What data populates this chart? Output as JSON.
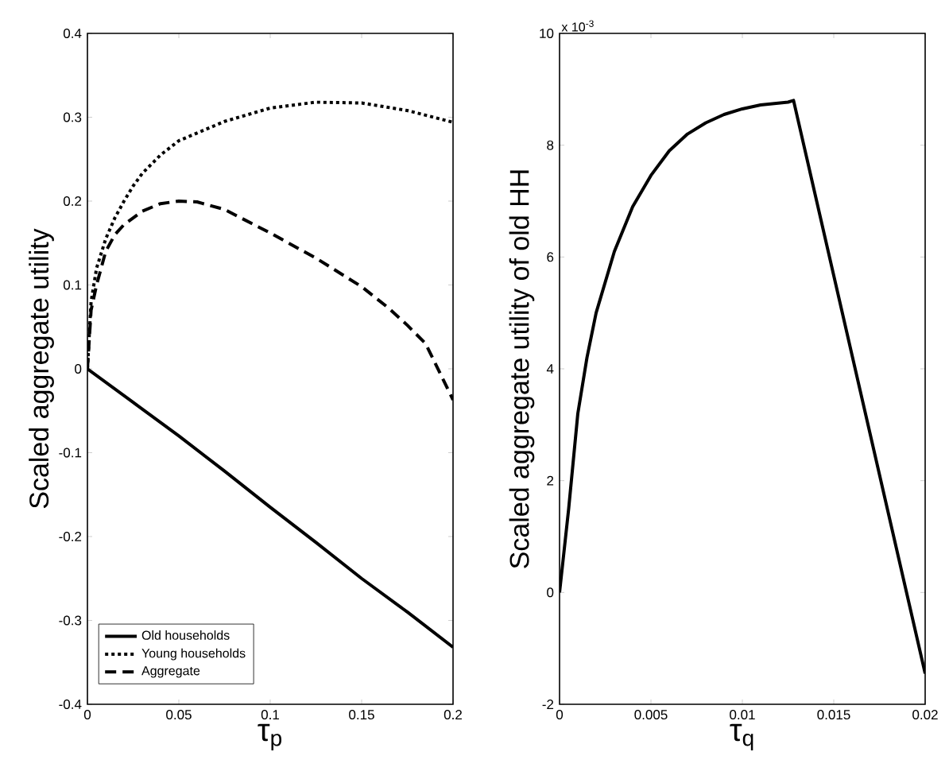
{
  "chart_data": [
    {
      "type": "line",
      "xlabel": "τ$_{p}$",
      "ylabel": "Scaled aggregate utility",
      "xlim": [
        0,
        0.2
      ],
      "ylim": [
        -0.4,
        0.4
      ],
      "xticks": [
        0,
        0.05,
        0.1,
        0.15,
        0.2
      ],
      "yticks": [
        -0.4,
        -0.3,
        -0.2,
        -0.1,
        0,
        0.1,
        0.2,
        0.3,
        0.4
      ],
      "legend": "bottom left",
      "grid": false,
      "series": [
        {
          "name": "Old households",
          "color": "#000000",
          "line_style": "solid",
          "x": [
            0,
            0.025,
            0.05,
            0.075,
            0.1,
            0.125,
            0.15,
            0.175,
            0.2
          ],
          "values": [
            0,
            -0.04,
            -0.08,
            -0.122,
            -0.165,
            -0.207,
            -0.25,
            -0.29,
            -0.332
          ]
        },
        {
          "name": "Young households",
          "color": "#000000",
          "line_style": "dotted",
          "x": [
            0,
            0.002,
            0.005,
            0.01,
            0.015,
            0.02,
            0.025,
            0.03,
            0.04,
            0.05,
            0.075,
            0.1,
            0.125,
            0.15,
            0.175,
            0.2
          ],
          "values": [
            0,
            0.08,
            0.12,
            0.155,
            0.18,
            0.2,
            0.218,
            0.233,
            0.255,
            0.272,
            0.295,
            0.311,
            0.318,
            0.317,
            0.308,
            0.294
          ]
        },
        {
          "name": "Aggregate",
          "color": "#000000",
          "line_style": "dashed",
          "x": [
            0,
            0.002,
            0.005,
            0.01,
            0.015,
            0.02,
            0.03,
            0.04,
            0.05,
            0.06,
            0.075,
            0.1,
            0.125,
            0.15,
            0.165,
            0.175,
            0.185,
            0.2
          ],
          "values": [
            0,
            0.07,
            0.1,
            0.14,
            0.16,
            0.172,
            0.188,
            0.197,
            0.2,
            0.199,
            0.19,
            0.162,
            0.132,
            0.098,
            0.072,
            0.052,
            0.03,
            -0.037
          ]
        }
      ]
    },
    {
      "type": "line",
      "xlabel": "τ$_{q}$",
      "ylabel": "Scaled aggregate utility of old HH",
      "annotations": [
        "x 10$^{-3}$"
      ],
      "xlim": [
        0,
        0.02
      ],
      "ylim": [
        -2,
        10
      ],
      "xticks": [
        0,
        0.005,
        0.01,
        0.015,
        0.02
      ],
      "yticks": [
        -2,
        0,
        2,
        4,
        6,
        8,
        10
      ],
      "legend": false,
      "grid": false,
      "series": [
        {
          "color": "#000000",
          "line_style": "solid",
          "x": [
            0,
            0.0005,
            0.001,
            0.0015,
            0.002,
            0.003,
            0.004,
            0.005,
            0.006,
            0.007,
            0.008,
            0.009,
            0.01,
            0.011,
            0.0125,
            0.0128,
            0.02
          ],
          "values": [
            0,
            1.5,
            3.2,
            4.2,
            5.0,
            6.1,
            6.9,
            7.46,
            7.9,
            8.2,
            8.4,
            8.55,
            8.65,
            8.72,
            8.77,
            8.8,
            -1.45
          ]
        }
      ]
    }
  ]
}
